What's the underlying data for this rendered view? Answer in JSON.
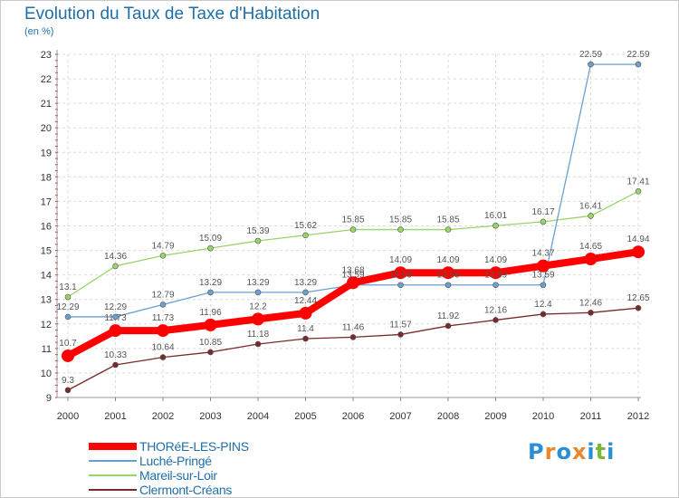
{
  "title": "Evolution du Taux de Taxe d'Habitation",
  "unit": "(en %)",
  "logo": [
    "P",
    "r",
    "o",
    "x",
    "i",
    "t",
    "i"
  ],
  "logo_colors": [
    "#2a8fd3",
    "#e8882d",
    "#2a8fd3",
    "#e8882d",
    "#2a8fd3",
    "#79b63a",
    "#2a8fd3"
  ],
  "chart_data": {
    "type": "line",
    "title": "Evolution du Taux de Taxe d'Habitation",
    "ylabel": "(en %)",
    "categories": [
      "2000",
      "2001",
      "2002",
      "2003",
      "2004",
      "2005",
      "2006",
      "2007",
      "2008",
      "2009",
      "2010",
      "2011",
      "2012"
    ],
    "ylim": [
      9,
      23
    ],
    "yticks": [
      9,
      10,
      11,
      12,
      13,
      14,
      15,
      16,
      17,
      18,
      19,
      20,
      21,
      22,
      23
    ],
    "grid": true,
    "legend_position": "bottom-left",
    "series": [
      {
        "name": "THORéE-LES-PINS",
        "color": "#ff0000",
        "values": [
          10.7,
          11.73,
          11.73,
          11.96,
          12.2,
          12.44,
          13.68,
          14.09,
          14.09,
          14.09,
          14.37,
          14.65,
          14.94
        ],
        "labels": [
          "10.7",
          "11.73",
          "11.73",
          "11.96",
          "12.2",
          "12.44",
          "13.68",
          "14.09",
          "14.09",
          "14.09",
          "14.37",
          "14.65",
          "14.94"
        ]
      },
      {
        "name": "Luché-Pringé",
        "color": "#6b9fcf",
        "values": [
          12.29,
          12.29,
          12.79,
          13.29,
          13.29,
          13.29,
          13.59,
          13.59,
          13.59,
          13.59,
          13.59,
          22.59,
          22.59
        ],
        "labels": [
          "12.29",
          "12.29",
          "12.79",
          "13.29",
          "13.29",
          "13.29",
          "13.59",
          "13.59",
          "13.59",
          "13.59",
          "13.59",
          "22.59",
          "22.59"
        ]
      },
      {
        "name": "Mareil-sur-Loir",
        "color": "#99d466",
        "values": [
          13.1,
          14.36,
          14.79,
          15.09,
          15.39,
          15.62,
          15.85,
          15.85,
          15.85,
          16.01,
          16.17,
          16.41,
          17.41
        ],
        "labels": [
          "13.1",
          "14.36",
          "14.79",
          "15.09",
          "15.39",
          "15.62",
          "15.85",
          "15.85",
          "15.85",
          "16.01",
          "16.17",
          "16.41",
          "17.41"
        ]
      },
      {
        "name": "Clermont-Créans",
        "color": "#7a2a2a",
        "values": [
          9.3,
          10.33,
          10.64,
          10.85,
          11.18,
          11.4,
          11.46,
          11.57,
          11.92,
          12.16,
          12.4,
          12.46,
          12.65
        ],
        "labels": [
          "9.3",
          "10.33",
          "10.64",
          "10.85",
          "11.18",
          "11.4",
          "11.46",
          "11.57",
          "11.92",
          "12.16",
          "12.4",
          "12.46",
          "12.65"
        ]
      }
    ]
  }
}
